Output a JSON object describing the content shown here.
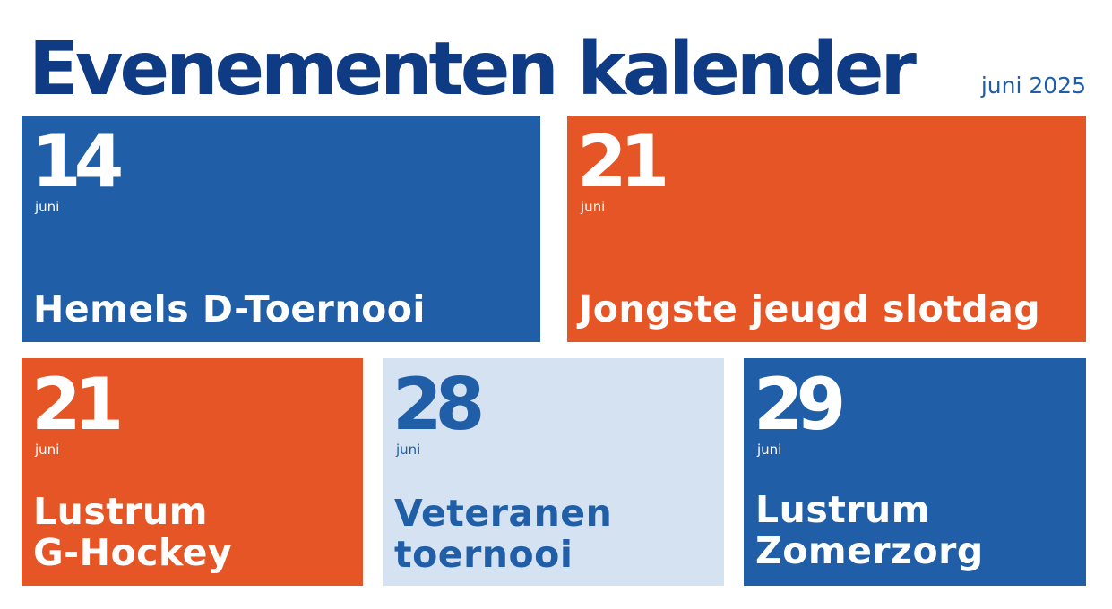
{
  "header": {
    "title": "Evenementen kalender",
    "month_label": "juni 2025"
  },
  "colors": {
    "title": "#0e3b84",
    "blue": "#205ea7",
    "orange": "#e65525",
    "light_blue": "#d4e2f1",
    "white": "#ffffff"
  },
  "events": [
    {
      "day": "14",
      "month": "juni",
      "name": "Hemels D-Toernooi",
      "bg": "#205ea7",
      "fg": "#ffffff"
    },
    {
      "day": "21",
      "month": "juni",
      "name": "Jongste jeugd slotdag",
      "bg": "#e65525",
      "fg": "#ffffff"
    },
    {
      "day": "21",
      "month": "juni",
      "name": "Lustrum\nG-Hockey",
      "bg": "#e65525",
      "fg": "#ffffff"
    },
    {
      "day": "28",
      "month": "juni",
      "name": "Veteranen\ntoernooi",
      "bg": "#d4e2f1",
      "fg": "#205ea7"
    },
    {
      "day": "29",
      "month": "juni",
      "name": "Lustrum\nZomerzorg",
      "bg": "#205ea7",
      "fg": "#ffffff"
    }
  ]
}
